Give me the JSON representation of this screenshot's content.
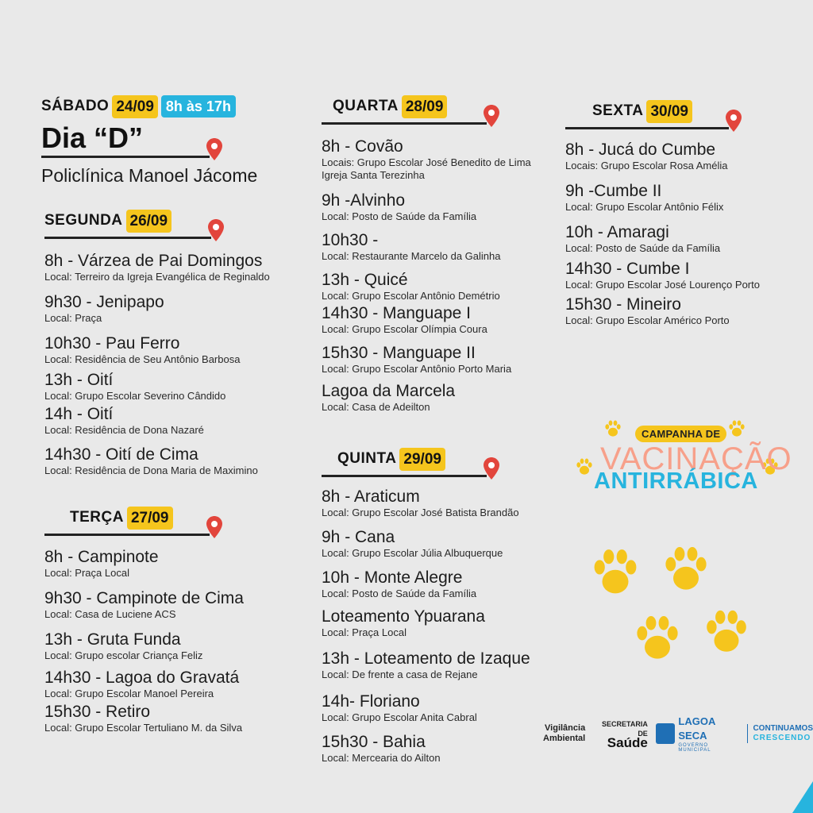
{
  "saturday": {
    "day": "SÁBADO",
    "date": "24/09",
    "hours": "8h às 17h",
    "title": "Dia “D”",
    "subtitle": "Policlínica Manoel Jácome"
  },
  "monday": {
    "day": "SEGUNDA",
    "date": "26/09",
    "entries": [
      {
        "title": "8h - Várzea de Pai Domingos",
        "loc": "Local: Terreiro da Igreja Evangélica de Reginaldo"
      },
      {
        "title": "9h30 - Jenipapo",
        "loc": "Local: Praça"
      },
      {
        "title": "10h30 - Pau Ferro",
        "loc": "Local: Residência de Seu Antônio Barbosa"
      },
      {
        "title": "13h - Oití",
        "loc": "Local: Grupo Escolar Severino Cândido"
      },
      {
        "title": "14h - Oití",
        "loc": "Local: Residência de Dona Nazaré"
      },
      {
        "title": "14h30 - Oití de Cima",
        "loc": "Local: Residência de Dona Maria de Maximino"
      }
    ]
  },
  "tuesday": {
    "day": "TERÇA",
    "date": "27/09",
    "entries": [
      {
        "title": "8h - Campinote",
        "loc": "Local: Praça Local"
      },
      {
        "title": "9h30 - Campinote de Cima",
        "loc": "Local: Casa de Luciene ACS"
      },
      {
        "title": "13h - Gruta Funda",
        "loc": "Local: Grupo escolar Criança Feliz"
      },
      {
        "title": "14h30 - Lagoa do Gravatá",
        "loc": "Local: Grupo Escolar Manoel Pereira"
      },
      {
        "title": "15h30 - Retiro",
        "loc": "Local: Grupo Escolar Tertuliano M. da Silva"
      }
    ]
  },
  "wednesday": {
    "day": "QUARTA",
    "date": "28/09",
    "entries": [
      {
        "title": "8h - Covão",
        "loc": "Locais: Grupo Escolar José Benedito de Lima",
        "loc2": "Igreja Santa Terezinha"
      },
      {
        "title": "9h -Alvinho",
        "loc": "Local: Posto de Saúde da Família"
      },
      {
        "title": "10h30 -",
        "loc": "Local: Restaurante Marcelo da Galinha"
      },
      {
        "title": "13h - Quicé",
        "loc": "Local: Grupo Escolar Antônio Demétrio"
      },
      {
        "title": "14h30 - Manguape I",
        "loc": "Local: Grupo Escolar Olímpia Coura"
      },
      {
        "title": "15h30 - Manguape II",
        "loc": "Local: Grupo Escolar Antônio Porto Maria"
      },
      {
        "title": "Lagoa da Marcela",
        "loc": "Local: Casa de Adeilton"
      }
    ]
  },
  "thursday": {
    "day": "QUINTA",
    "date": "29/09",
    "entries": [
      {
        "title": "8h - Araticum",
        "loc": "Local: Grupo Escolar José Batista Brandão"
      },
      {
        "title": "9h - Cana",
        "loc": "Local: Grupo Escolar Júlia Albuquerque"
      },
      {
        "title": "10h - Monte Alegre",
        "loc": "Local: Posto de Saúde da Família"
      },
      {
        "title": "Loteamento Ypuarana",
        "loc": "Local: Praça Local"
      },
      {
        "title": "13h - Loteamento de Izaque",
        "loc": "Local: De frente a casa de Rejane"
      },
      {
        "title": "14h- Floriano",
        "loc": "Local: Grupo Escolar Anita Cabral"
      },
      {
        "title": "15h30 - Bahia",
        "loc": "Local: Mercearia do Ailton"
      }
    ]
  },
  "friday": {
    "day": "SEXTA",
    "date": "30/09",
    "entries": [
      {
        "title": "8h - Jucá do Cumbe",
        "loc": "Locais: Grupo Escolar Rosa Amélia"
      },
      {
        "title": "9h -Cumbe II",
        "loc": "Local: Grupo Escolar Antônio Félix"
      },
      {
        "title": "10h -  Amaragi",
        "loc": "Local: Posto de Saúde da Família"
      },
      {
        "title": "14h30 - Cumbe I",
        "loc": "Local: Grupo Escolar José Lourenço Porto"
      },
      {
        "title": "15h30 - Mineiro",
        "loc": "Local: Grupo Escolar Américo Porto"
      }
    ]
  },
  "campaign": {
    "badge": "CAMPANHA DE",
    "line1": "VACINAÇÃO",
    "line2": "ANTIRRÁBICA"
  },
  "footer": {
    "vig1": "Vigilância",
    "vig2": "Ambiental",
    "sec1": "SECRETARIA DE",
    "sec2": "Saúde",
    "city1": "LAGOA",
    "city2": "SECA",
    "gov": "GOVERNO MUNICIPAL",
    "slogan1": "CONTINUAMOS",
    "slogan2": "CRESCENDO"
  },
  "colors": {
    "yellow": "#f5c51d",
    "blue": "#27b4de",
    "pin": "#e2453c",
    "paw": "#f5c51d"
  }
}
